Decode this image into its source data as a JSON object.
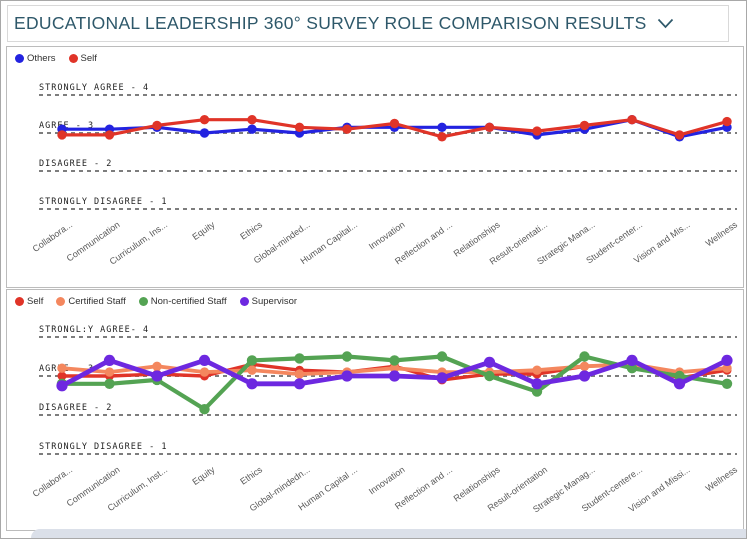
{
  "title_bar": {
    "title": "EDUCATIONAL LEADERSHIP 360° SURVEY ROLE COMPARISON RESULTS",
    "dropdown_icon": "chevron-down"
  },
  "colors": {
    "title": "#2e586a",
    "grid": "#7d7d7d",
    "others": "#2323e0",
    "self": "#e03428",
    "certified_staff": "#f4875e",
    "non_certified_staff": "#54a353",
    "supervisor": "#6d28e0"
  },
  "chart_data": [
    {
      "type": "line",
      "title": "",
      "legend_position": "top-left",
      "grid": "horizontal-dashed",
      "ylim": [
        1,
        4
      ],
      "y_gridlines": [
        {
          "label": "STRONGLY AGREE - 4",
          "value": 4
        },
        {
          "label": "AGREE - 3",
          "value": 3
        },
        {
          "label": "DISAGREE - 2",
          "value": 2
        },
        {
          "label": "STRONGLY DISAGREE - 1",
          "value": 1
        }
      ],
      "categories": [
        "Collabora...",
        "Communication",
        "Curriculum, Ins...",
        "Equity",
        "Ethics",
        "Global-minded...",
        "Human Capital...",
        "Innovation",
        "Reflection and ...",
        "Relationships",
        "Result-orientati...",
        "Strategic Mana...",
        "Student-center...",
        "Vision and Mis...",
        "Wellness"
      ],
      "series": [
        {
          "name": "Others",
          "color": "#2323e0",
          "values": [
            3.1,
            3.1,
            3.15,
            3.0,
            3.1,
            3.0,
            3.15,
            3.15,
            3.15,
            3.15,
            2.95,
            3.1,
            3.35,
            2.9,
            3.15
          ]
        },
        {
          "name": "Self",
          "color": "#e03428",
          "values": [
            2.95,
            2.95,
            3.2,
            3.35,
            3.35,
            3.15,
            3.1,
            3.25,
            2.9,
            3.15,
            3.05,
            3.2,
            3.35,
            2.95,
            3.3
          ]
        }
      ]
    },
    {
      "type": "line",
      "title": "",
      "legend_position": "top-left",
      "grid": "horizontal-dashed",
      "ylim": [
        1,
        4
      ],
      "y_gridlines": [
        {
          "label": "STRONGL:Y AGREE- 4",
          "value": 4
        },
        {
          "label": "AGREE - 3",
          "value": 3
        },
        {
          "label": "DISAGREE - 2",
          "value": 2
        },
        {
          "label": "STRONGLY DISAGREE - 1",
          "value": 1
        }
      ],
      "categories": [
        "Collabora...",
        "Communication",
        "Curriculum, Inst...",
        "Equity",
        "Ethics",
        "Global-mindedn...",
        "Human Capital ...",
        "Innovation",
        "Reflection and ...",
        "Relationships",
        "Result-orientation",
        "Strategic Manag...",
        "Student-centere...",
        "Vision and Missi...",
        "Wellness"
      ],
      "series": [
        {
          "name": "Self",
          "color": "#e03428",
          "values": [
            3.0,
            3.0,
            3.05,
            3.0,
            3.3,
            3.15,
            3.1,
            3.25,
            2.9,
            3.05,
            3.05,
            3.25,
            3.3,
            2.95,
            3.15
          ]
        },
        {
          "name": "Certified Staff",
          "color": "#f4875e",
          "values": [
            3.2,
            3.1,
            3.25,
            3.1,
            3.15,
            3.05,
            3.1,
            3.2,
            3.1,
            3.1,
            3.15,
            3.25,
            3.3,
            3.1,
            3.2
          ]
        },
        {
          "name": "Non-certified Staff",
          "color": "#54a353",
          "values": [
            2.8,
            2.8,
            2.9,
            2.15,
            3.4,
            3.45,
            3.5,
            3.4,
            3.5,
            3.0,
            2.6,
            3.5,
            3.2,
            3.0,
            2.8
          ]
        },
        {
          "name": "Supervisor",
          "color": "#6d28e0",
          "values": [
            2.75,
            3.4,
            3.0,
            3.4,
            2.8,
            2.8,
            3.0,
            3.0,
            2.95,
            3.35,
            2.8,
            3.0,
            3.4,
            2.8,
            3.4
          ]
        }
      ]
    }
  ]
}
